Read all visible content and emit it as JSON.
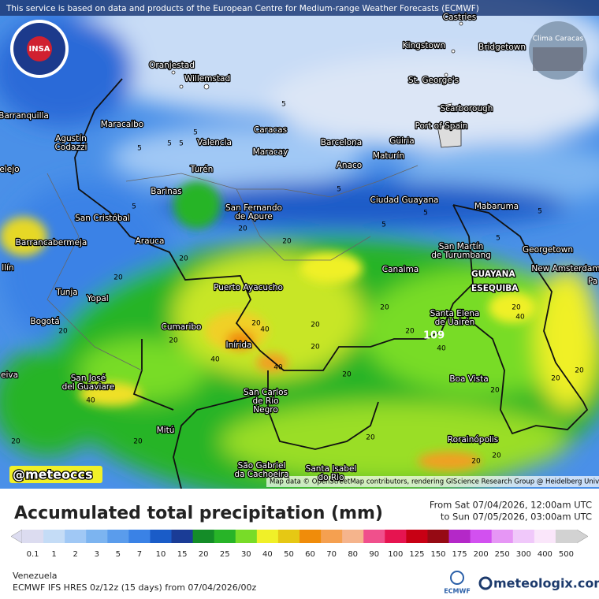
{
  "banner": "This service is based on data and products of the European Centre for Medium-range Weather Forecasts (ECMWF)",
  "map": {
    "logo_left": "INSA",
    "logo_right": "Clima Caracas",
    "watermark": "@meteoccs",
    "attribution": "Map data © OpenStreetMap contributors, rendering GIScience Research Group @ Heidelberg University",
    "region_label": [
      "GUAYANA",
      "ESEQUIBA"
    ],
    "max_label": "109",
    "cities": [
      [
        "Castries"
      ],
      [
        "Kingstown"
      ],
      [
        "Bridgetown"
      ],
      [
        "Oranjestad"
      ],
      [
        "Willemstad"
      ],
      [
        "St. George's"
      ],
      [
        "Scarborough"
      ],
      [
        "Barranquilla"
      ],
      [
        "Maracaibo"
      ],
      [
        "Port of Spain"
      ],
      [
        "Caracas"
      ],
      [
        "Agustín",
        "Codazzi"
      ],
      [
        "Valencia"
      ],
      [
        "Barcelona"
      ],
      [
        "Güiria"
      ],
      [
        "Maracay"
      ],
      [
        "Maturín"
      ],
      [
        "Anaco"
      ],
      [
        "Turén"
      ],
      [
        "elejo"
      ],
      [
        "Barinas"
      ],
      [
        "Ciudad Guayana"
      ],
      [
        "San Fernando",
        "de Apure"
      ],
      [
        "Mabaruma"
      ],
      [
        "San Cristóbal"
      ],
      [
        "Barrancabermeja"
      ],
      [
        "Arauca"
      ],
      [
        "San Martín",
        "de Turumbang"
      ],
      [
        "Georgetown"
      ],
      [
        "Canaima"
      ],
      [
        "New Amsterdam"
      ],
      [
        "llín"
      ],
      [
        "Pa"
      ],
      [
        "Puerto Ayacucho"
      ],
      [
        "Tunja"
      ],
      [
        "Yopal"
      ],
      [
        "Santa Elena",
        "de Uairén"
      ],
      [
        "Bogotá"
      ],
      [
        "Cumaribo"
      ],
      [
        "Inírida"
      ],
      [
        "eiva"
      ],
      [
        "San José",
        "del Guaviare"
      ],
      [
        "Boa Vista"
      ],
      [
        "San Carlos",
        "de Río",
        "Negro"
      ],
      [
        "Mitú"
      ],
      [
        "Rorainópolis"
      ],
      [
        "São Gabriel",
        "da Cachoeira"
      ],
      [
        "Santa Isabel",
        "do Rio"
      ]
    ],
    "contour_labels": [
      5,
      5,
      5,
      5,
      5,
      5,
      5,
      5,
      5,
      5,
      5,
      20,
      20,
      20,
      20,
      20,
      20,
      20,
      20,
      40,
      40,
      40,
      20,
      20,
      20,
      40,
      20,
      20,
      20,
      20,
      40,
      20,
      20,
      20,
      20,
      40,
      20,
      20
    ]
  },
  "footer": {
    "title": "Accumulated total precipitation (mm)",
    "from": "From Sat 07/04/2026, 12:00am UTC",
    "to": "to Sun 07/05/2026, 03:00am UTC",
    "region": "Venezuela",
    "model": "ECMWF IFS HRES 0z/12z (15 days) from 07/04/2026/00z",
    "ecmwf_logo": "ECMWF",
    "brand": "meteologix.com"
  },
  "legend": {
    "values": [
      0.1,
      1,
      2,
      3,
      5,
      7,
      10,
      15,
      20,
      25,
      30,
      40,
      50,
      60,
      70,
      80,
      90,
      100,
      125,
      150,
      175,
      200,
      250,
      300,
      400,
      500
    ],
    "colors": [
      "#dcdcf0",
      "#c4dcf6",
      "#a0c8f5",
      "#7cb4f0",
      "#5a9cec",
      "#3a82e6",
      "#1a5cc8",
      "#1a3c96",
      "#148c28",
      "#28b428",
      "#78dc28",
      "#f0f028",
      "#e6c814",
      "#f08c0a",
      "#f5a050",
      "#f5b48c",
      "#f0508c",
      "#e61450",
      "#c80014",
      "#960a14",
      "#b428c8",
      "#d250f0",
      "#e696f5",
      "#f0c8fa",
      "#fae6fa",
      "#d2d2d2"
    ]
  }
}
